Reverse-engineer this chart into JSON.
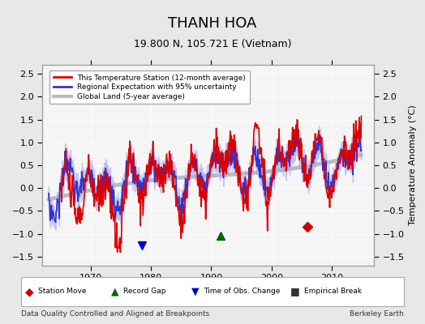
{
  "title": "THANH HOA",
  "subtitle": "19.800 N, 105.721 E (Vietnam)",
  "xlabel_bottom": "Data Quality Controlled and Aligned at Breakpoints",
  "xlabel_right": "Berkeley Earth",
  "ylabel": "Temperature Anomaly (°C)",
  "ylim": [
    -1.7,
    2.7
  ],
  "xlim": [
    1962,
    2017
  ],
  "yticks": [
    -1.5,
    -1.0,
    -0.5,
    0.0,
    0.5,
    1.0,
    1.5,
    2.0,
    2.5
  ],
  "xticks": [
    1970,
    1980,
    1990,
    2000,
    2010
  ],
  "bg_color": "#e8e8e8",
  "plot_bg_color": "#f5f5f5",
  "station_color": "#dd0000",
  "regional_color": "#3333cc",
  "regional_fill_color": "#aaaaee",
  "global_color": "#bbbbbb",
  "marker_station_move_color": "#cc0000",
  "marker_record_gap_color": "#006600",
  "marker_time_obs_color": "#0000cc",
  "marker_empirical_color": "#333333",
  "station_move_years": [
    2006
  ],
  "station_move_vals": [
    -0.85
  ],
  "record_gap_years": [
    1991.5
  ],
  "record_gap_vals": [
    -1.05
  ],
  "time_obs_years": [
    1978.5
  ],
  "time_obs_vals": [
    -1.25
  ],
  "empirical_break_years": [],
  "empirical_break_vals": []
}
